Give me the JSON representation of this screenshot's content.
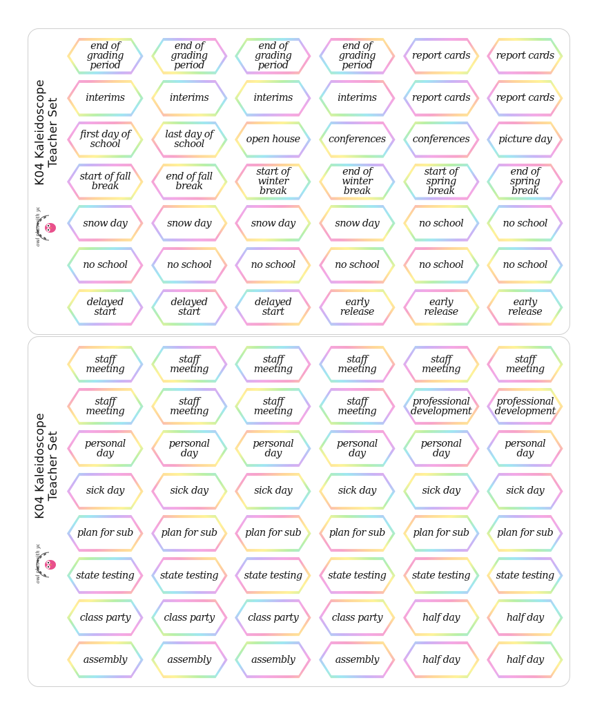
{
  "colors": {
    "gradient": [
      "#f7a3c9",
      "#ffd59a",
      "#fff39a",
      "#b8f0a8",
      "#9fe7f2",
      "#c7b4f6",
      "#f3a8e6"
    ],
    "text": "#111111",
    "sheet_border": "#cfcfcf"
  },
  "sheets": [
    {
      "side_title": [
        "K04 Kaleidoscope",
        "Teacher Set"
      ],
      "logo": {
        "text": "owl plan with you",
        "icon": "owl-logo-icon"
      },
      "rows": [
        [
          "end of grading period",
          "end of grading period",
          "end of grading period",
          "end of grading period",
          "report cards",
          "report cards"
        ],
        [
          "interims",
          "interims",
          "interims",
          "interims",
          "report cards",
          "report cards"
        ],
        [
          "first day of school",
          "last day of school",
          "open house",
          "conferences",
          "conferences",
          "picture day"
        ],
        [
          "start of fall break",
          "end of fall break",
          "start of winter break",
          "end of winter break",
          "start of spring break",
          "end of spring break"
        ],
        [
          "snow day",
          "snow day",
          "snow day",
          "snow day",
          "no school",
          "no school"
        ],
        [
          "no school",
          "no school",
          "no school",
          "no school",
          "no school",
          "no school"
        ],
        [
          "delayed start",
          "delayed start",
          "delayed start",
          "early release",
          "early release",
          "early release"
        ]
      ]
    },
    {
      "side_title": [
        "K04 Kaleidoscope",
        "Teacher Set"
      ],
      "logo": {
        "text": "owl plan with you",
        "icon": "owl-logo-icon"
      },
      "rows": [
        [
          "staff meeting",
          "staff meeting",
          "staff meeting",
          "staff meeting",
          "staff meeting",
          "staff meeting"
        ],
        [
          "staff meeting",
          "staff meeting",
          "staff meeting",
          "staff meeting",
          "professional development",
          "professional development"
        ],
        [
          "personal day",
          "personal day",
          "personal day",
          "personal day",
          "personal day",
          "personal day"
        ],
        [
          "sick day",
          "sick day",
          "sick day",
          "sick day",
          "sick day",
          "sick day"
        ],
        [
          "plan for sub",
          "plan for sub",
          "plan for sub",
          "plan for sub",
          "plan for sub",
          "plan for sub"
        ],
        [
          "state testing",
          "state testing",
          "state testing",
          "state testing",
          "state testing",
          "state testing"
        ],
        [
          "class party",
          "class party",
          "class party",
          "class party",
          "half day",
          "half day"
        ],
        [
          "assembly",
          "assembly",
          "assembly",
          "assembly",
          "half day",
          "half day"
        ]
      ]
    }
  ]
}
